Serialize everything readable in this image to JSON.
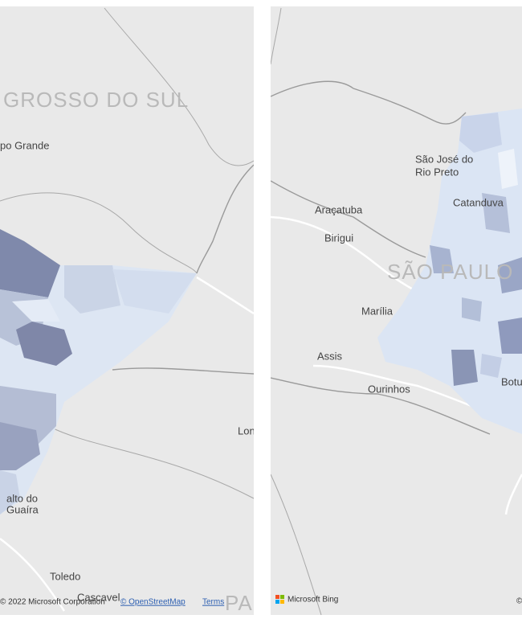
{
  "left_map": {
    "labels": [
      "GROSSO DO SUL",
      "po Grande",
      "Lon",
      "alto do",
      "Guaíra",
      "Toledo",
      "Cascavel",
      "PAR"
    ],
    "attribution": [
      "© 2022 Microsoft Corporation",
      "© OpenStreetMap",
      "Terms"
    ]
  },
  "right_map": {
    "labels": [
      "São José do",
      "Rio Preto",
      "Catanduva",
      "Araçatuba",
      "Birigui",
      "SÃO PAULO",
      "Marília",
      "Assis",
      "Ourinhos",
      "Botu"
    ],
    "attribution": [
      "Microsoft Bing",
      "©"
    ]
  }
}
